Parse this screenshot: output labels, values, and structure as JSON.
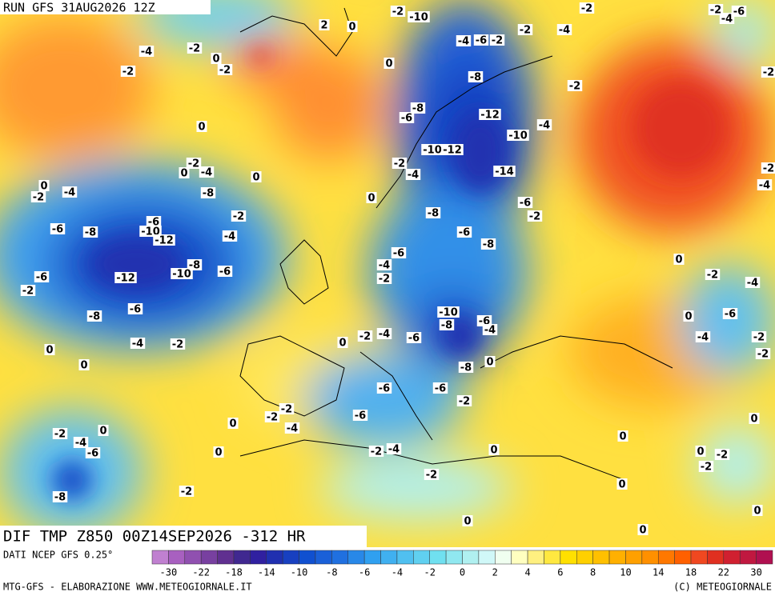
{
  "header": {
    "run": "RUN GFS 31AUG2026 12Z"
  },
  "title": "DIF TMP Z850 00Z14SEP2026 -312 HR",
  "footer": {
    "source": "DATI NCEP GFS 0.25°",
    "credit": "MTG-GFS - ELABORAZIONE WWW.METEOGIORNALE.IT",
    "copyright": "(C) METEOGIORNALE"
  },
  "colorbar": {
    "labels": [
      -30,
      -22,
      -18,
      -14,
      -10,
      -8,
      -6,
      -4,
      -2,
      0,
      2,
      4,
      6,
      8,
      10,
      14,
      18,
      22,
      30
    ],
    "colors": [
      "#c080d0",
      "#a860c0",
      "#9050b0",
      "#7840a0",
      "#603090",
      "#402890",
      "#3020a0",
      "#2030b0",
      "#1840c0",
      "#1050d0",
      "#1a60d8",
      "#2070e0",
      "#2888e8",
      "#30a0f0",
      "#40b0f0",
      "#50c0f0",
      "#60d0f0",
      "#70e0f0",
      "#90e8f0",
      "#b0f0f0",
      "#d0f8f8",
      "#f0fff0",
      "#ffffc0",
      "#fff080",
      "#ffe840",
      "#ffe000",
      "#ffd000",
      "#ffc000",
      "#ffb000",
      "#ffa000",
      "#ff9000",
      "#ff7800",
      "#ff6000",
      "#f04820",
      "#e03020",
      "#d02030",
      "#c01840",
      "#b01050"
    ]
  },
  "contour_labels": [
    -4,
    -2,
    -2,
    0,
    -2,
    0,
    -2,
    -4,
    0,
    0,
    0,
    -2,
    -4,
    -8,
    -2,
    -6,
    -6,
    -8,
    -10,
    -12,
    -4,
    -8,
    -6,
    -10,
    -12,
    -6,
    -2,
    -6,
    -8,
    -4,
    -2,
    0,
    0,
    -10,
    -4,
    -6,
    -2,
    -2,
    -4,
    -2,
    0,
    -8,
    -2,
    -8,
    -6,
    -12,
    -10,
    -4,
    -10,
    -12,
    -14,
    -2,
    -4,
    0,
    -8,
    -6,
    -2,
    -6,
    -8,
    -6,
    -4,
    -2,
    -10,
    -8,
    -6,
    -4,
    -2,
    -4,
    -6,
    0,
    -8,
    0,
    -6,
    -6,
    -2,
    -2,
    -2,
    -4,
    -6,
    0,
    -2,
    -4,
    0,
    -2,
    0,
    -4,
    -6,
    -2,
    0,
    -8,
    -2,
    0,
    0,
    0,
    0,
    0,
    0,
    -2,
    -2,
    0,
    -2,
    -4,
    -6,
    -2,
    -4,
    0,
    0,
    -2,
    -4,
    -2,
    -6,
    -4,
    -2,
    -2,
    0,
    2,
    -2
  ]
}
